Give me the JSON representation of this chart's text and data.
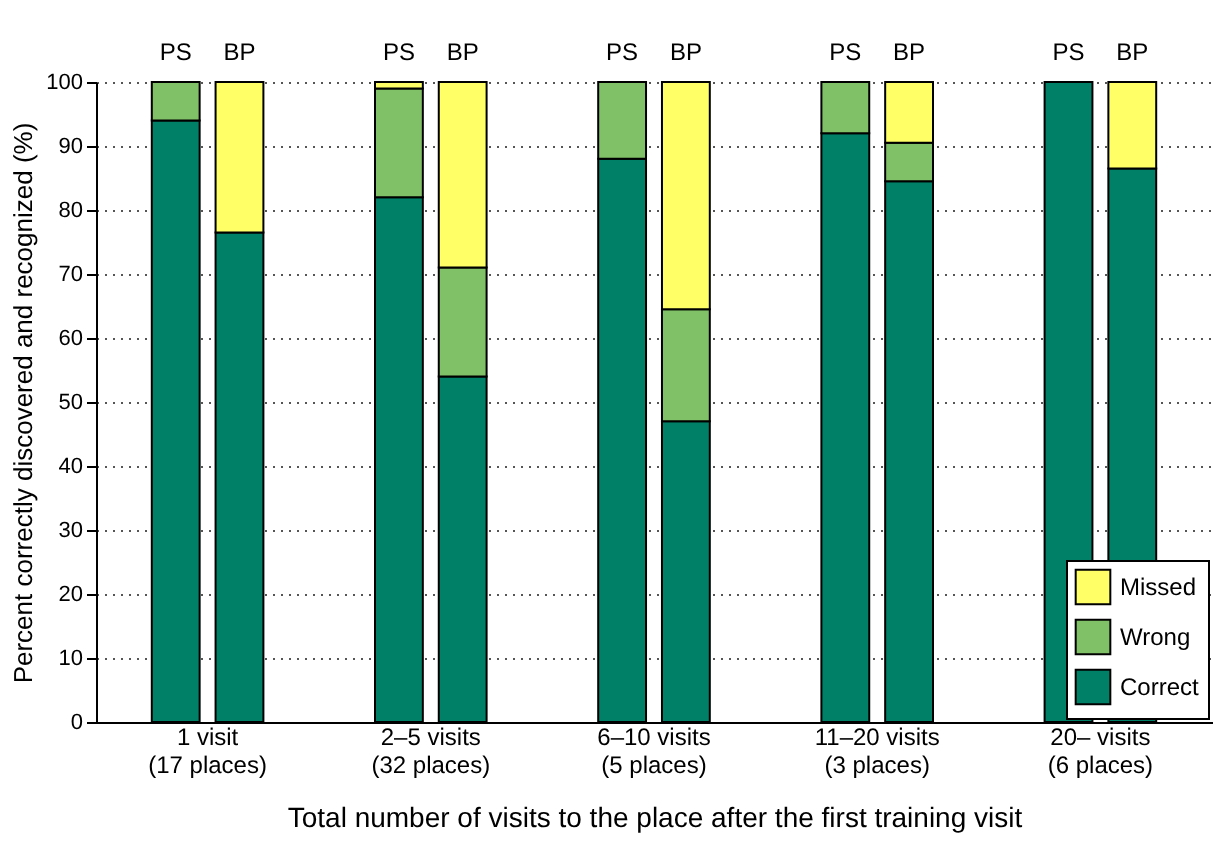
{
  "chart_data": {
    "type": "bar",
    "stacked": true,
    "ylabel": "Percent correctly discovered and recognized (%)",
    "xlabel": "Total number of visits to the place after the first training visit",
    "categories": [
      "PS",
      "BP",
      "PS",
      "BP",
      "PS",
      "BP",
      "PS",
      "BP",
      "PS",
      "BP"
    ],
    "annotations": [
      "1 visit\n(17 places)",
      "2–5 visits\n(32 places)",
      "6–10 visits\n(5 places)",
      "11–20 visits\n(3 places)",
      "20– visits\n(6 places)"
    ],
    "series": [
      {
        "name": "Correct",
        "color": "#008066",
        "values": [
          94,
          76.5,
          82,
          54,
          88,
          47,
          92,
          84.5,
          100,
          86.5
        ]
      },
      {
        "name": "Wrong",
        "color": "#80c066",
        "values": [
          6,
          0,
          17,
          17,
          12,
          17.5,
          8,
          6,
          0,
          0
        ]
      },
      {
        "name": "Missed",
        "color": "#ffff66",
        "values": [
          0,
          23.5,
          1,
          29,
          0,
          35.5,
          0,
          9.5,
          0,
          13.5
        ]
      }
    ],
    "ylim": [
      0,
      100
    ],
    "yticks": [
      0,
      10,
      20,
      30,
      40,
      50,
      60,
      70,
      80,
      90,
      100
    ],
    "grid": "y",
    "legend": "bottom right"
  }
}
